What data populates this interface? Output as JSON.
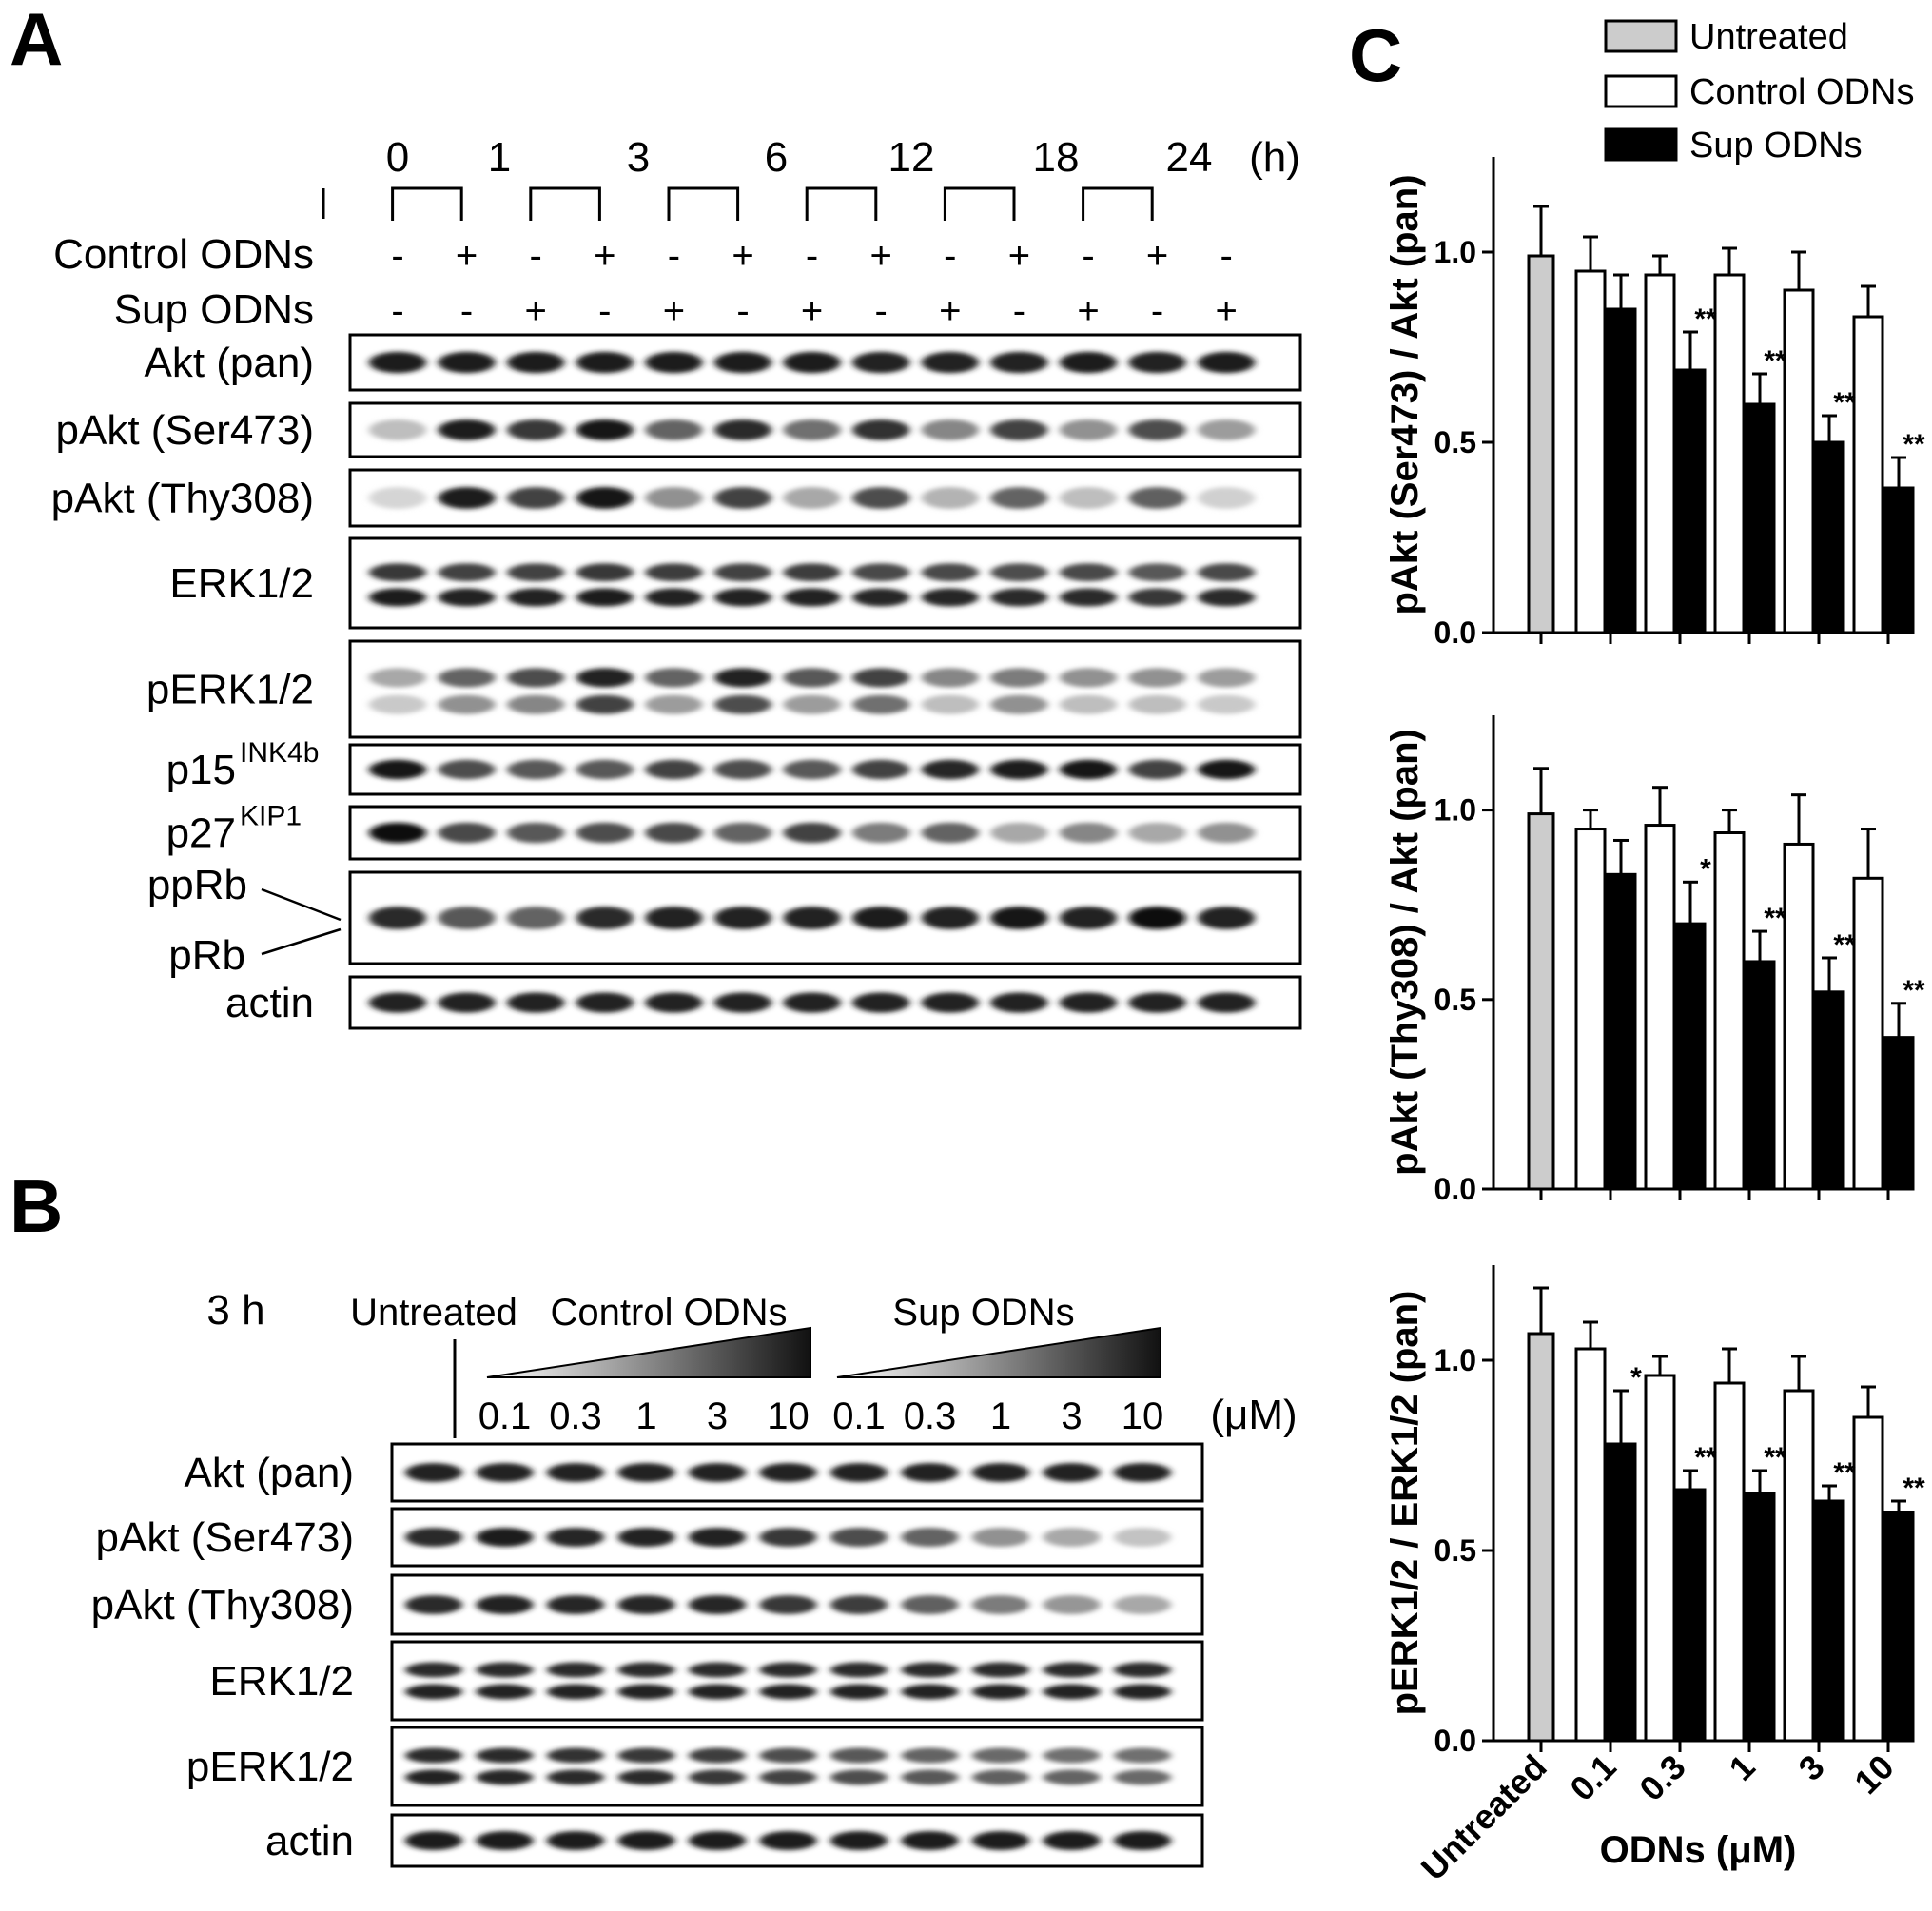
{
  "panelA": {
    "letter": "A",
    "times": [
      "0",
      "1",
      "3",
      "6",
      "12",
      "18",
      "24"
    ],
    "time_unit": "(h)",
    "treatments": [
      {
        "label": "Control ODNs",
        "signs": [
          "-",
          "+",
          "-",
          "+",
          "-",
          "+",
          "-",
          "+",
          "-",
          "+",
          "-",
          "+",
          "-"
        ]
      },
      {
        "label": "Sup ODNs",
        "signs": [
          "-",
          "-",
          "+",
          "-",
          "+",
          "-",
          "+",
          "-",
          "+",
          "-",
          "+",
          "-",
          "+"
        ]
      }
    ],
    "blots": [
      {
        "label": "Akt (pan)",
        "sup": "",
        "rows": 1,
        "levels": [
          [
            0.92,
            0.92,
            0.92,
            0.92,
            0.92,
            0.92,
            0.92,
            0.9,
            0.9,
            0.9,
            0.92,
            0.9,
            0.92
          ]
        ]
      },
      {
        "label": "pAkt (Ser473)",
        "sup": "",
        "rows": 1,
        "levels": [
          [
            0.2,
            0.92,
            0.8,
            0.95,
            0.6,
            0.85,
            0.55,
            0.82,
            0.45,
            0.75,
            0.4,
            0.7,
            0.35
          ]
        ]
      },
      {
        "label": "pAkt (Thy308)",
        "sup": "",
        "rows": 1,
        "levels": [
          [
            0.1,
            0.92,
            0.75,
            0.95,
            0.4,
            0.75,
            0.3,
            0.7,
            0.25,
            0.6,
            0.2,
            0.62,
            0.12
          ]
        ]
      },
      {
        "label": "ERK1/2",
        "sup": "",
        "rows": 2,
        "levels": [
          [
            0.8,
            0.75,
            0.75,
            0.8,
            0.78,
            0.75,
            0.78,
            0.72,
            0.72,
            0.7,
            0.72,
            0.65,
            0.72
          ],
          [
            0.92,
            0.9,
            0.9,
            0.92,
            0.9,
            0.9,
            0.9,
            0.88,
            0.88,
            0.85,
            0.85,
            0.8,
            0.85
          ]
        ]
      },
      {
        "label": "pERK1/2",
        "sup": "",
        "rows": 2,
        "levels": [
          [
            0.3,
            0.6,
            0.7,
            0.9,
            0.6,
            0.9,
            0.65,
            0.75,
            0.45,
            0.5,
            0.4,
            0.4,
            0.35
          ],
          [
            0.15,
            0.4,
            0.45,
            0.75,
            0.35,
            0.7,
            0.35,
            0.55,
            0.2,
            0.4,
            0.2,
            0.2,
            0.15
          ]
        ]
      },
      {
        "label": "p15",
        "sup": "INK4b",
        "rows": 1,
        "levels": [
          [
            0.95,
            0.7,
            0.65,
            0.65,
            0.75,
            0.7,
            0.65,
            0.75,
            0.88,
            0.92,
            0.95,
            0.75,
            0.95
          ]
        ]
      },
      {
        "label": "p27",
        "sup": "KIP1",
        "rows": 1,
        "levels": [
          [
            0.98,
            0.72,
            0.65,
            0.7,
            0.72,
            0.6,
            0.75,
            0.5,
            0.6,
            0.3,
            0.45,
            0.3,
            0.4
          ]
        ]
      },
      {
        "label": "ppRb",
        "label2": "pRb",
        "sup": "",
        "rows": 1,
        "levels": [
          [
            0.85,
            0.65,
            0.6,
            0.85,
            0.9,
            0.9,
            0.9,
            0.92,
            0.9,
            0.95,
            0.9,
            1.0,
            0.9
          ]
        ]
      },
      {
        "label": "actin",
        "sup": "",
        "rows": 1,
        "levels": [
          [
            0.9,
            0.9,
            0.9,
            0.9,
            0.9,
            0.9,
            0.9,
            0.9,
            0.9,
            0.9,
            0.9,
            0.9,
            0.9
          ]
        ]
      }
    ]
  },
  "panelB": {
    "letter": "B",
    "time_label": "3 h",
    "group_untreated": "Untreated",
    "group_control": "Control ODNs",
    "group_sup": "Sup ODNs",
    "concentrations": [
      "0.1",
      "0.3",
      "1",
      "3",
      "10",
      "0.1",
      "0.3",
      "1",
      "3",
      "10"
    ],
    "conc_unit": "(μM)",
    "blots": [
      {
        "label": "Akt (pan)",
        "rows": 1,
        "levels": [
          [
            0.9,
            0.9,
            0.9,
            0.9,
            0.9,
            0.9,
            0.9,
            0.9,
            0.9,
            0.9,
            0.9
          ]
        ]
      },
      {
        "label": "pAkt (Ser473)",
        "rows": 1,
        "levels": [
          [
            0.85,
            0.92,
            0.88,
            0.9,
            0.9,
            0.8,
            0.7,
            0.6,
            0.4,
            0.3,
            0.18
          ]
        ]
      },
      {
        "label": "pAkt (Thy308)",
        "rows": 1,
        "levels": [
          [
            0.85,
            0.9,
            0.88,
            0.88,
            0.88,
            0.8,
            0.78,
            0.62,
            0.5,
            0.38,
            0.3
          ]
        ]
      },
      {
        "label": "ERK1/2",
        "rows": 2,
        "levels": [
          [
            0.85,
            0.85,
            0.85,
            0.85,
            0.85,
            0.85,
            0.85,
            0.85,
            0.85,
            0.85,
            0.85
          ],
          [
            0.9,
            0.9,
            0.9,
            0.9,
            0.9,
            0.9,
            0.9,
            0.9,
            0.9,
            0.9,
            0.9
          ]
        ]
      },
      {
        "label": "pERK1/2",
        "rows": 2,
        "levels": [
          [
            0.85,
            0.85,
            0.82,
            0.8,
            0.78,
            0.7,
            0.65,
            0.6,
            0.58,
            0.55,
            0.55
          ],
          [
            0.9,
            0.88,
            0.85,
            0.85,
            0.8,
            0.75,
            0.7,
            0.65,
            0.62,
            0.6,
            0.58
          ]
        ]
      },
      {
        "label": "actin",
        "rows": 1,
        "levels": [
          [
            0.92,
            0.92,
            0.92,
            0.92,
            0.92,
            0.92,
            0.92,
            0.92,
            0.92,
            0.92,
            0.92
          ]
        ]
      }
    ]
  },
  "chart_data": [
    {
      "type": "bar",
      "panel_letter": "C",
      "ylabel": "pAkt (Ser473) / Akt (pan)",
      "ylim": [
        0,
        1.25
      ],
      "yticks": [
        "0.0",
        "0.5",
        "1.0"
      ],
      "categories": [
        "Untreated",
        "0.1",
        "0.3",
        "1",
        "3",
        "10"
      ],
      "series": [
        {
          "name": "Untreated",
          "color": "#cccccc",
          "values": [
            0.99,
            null,
            null,
            null,
            null,
            null
          ],
          "errors": [
            0.13,
            null,
            null,
            null,
            null,
            null
          ],
          "sig": [
            "",
            "",
            "",
            "",
            "",
            ""
          ]
        },
        {
          "name": "Control ODNs",
          "color": "#ffffff",
          "values": [
            null,
            0.95,
            0.94,
            0.94,
            0.9,
            0.83
          ],
          "errors": [
            null,
            0.09,
            0.05,
            0.07,
            0.1,
            0.08
          ],
          "sig": [
            "",
            "",
            "",
            "",
            "",
            ""
          ]
        },
        {
          "name": "Sup ODNs",
          "color": "#000000",
          "values": [
            null,
            0.85,
            0.69,
            0.6,
            0.5,
            0.38
          ],
          "errors": [
            null,
            0.09,
            0.1,
            0.08,
            0.07,
            0.08
          ],
          "sig": [
            "",
            "",
            "**",
            "**",
            "**",
            "**"
          ]
        }
      ]
    },
    {
      "type": "bar",
      "ylabel": "pAkt (Thy308) / Akt (pan)",
      "ylim": [
        0,
        1.25
      ],
      "yticks": [
        "0.0",
        "0.5",
        "1.0"
      ],
      "categories": [
        "Untreated",
        "0.1",
        "0.3",
        "1",
        "3",
        "10"
      ],
      "series": [
        {
          "name": "Untreated",
          "color": "#cccccc",
          "values": [
            0.99,
            null,
            null,
            null,
            null,
            null
          ],
          "errors": [
            0.12,
            null,
            null,
            null,
            null,
            null
          ],
          "sig": [
            "",
            "",
            "",
            "",
            "",
            ""
          ]
        },
        {
          "name": "Control ODNs",
          "color": "#ffffff",
          "values": [
            null,
            0.95,
            0.96,
            0.94,
            0.91,
            0.82
          ],
          "errors": [
            null,
            0.05,
            0.1,
            0.06,
            0.13,
            0.13
          ],
          "sig": [
            "",
            "",
            "",
            "",
            "",
            ""
          ]
        },
        {
          "name": "Sup ODNs",
          "color": "#000000",
          "values": [
            null,
            0.83,
            0.7,
            0.6,
            0.52,
            0.4
          ],
          "errors": [
            null,
            0.09,
            0.11,
            0.08,
            0.09,
            0.09
          ],
          "sig": [
            "",
            "",
            "*",
            "**",
            "**",
            "**"
          ]
        }
      ]
    },
    {
      "type": "bar",
      "ylabel": "pERK1/2 / ERK1/2 (pan)",
      "xlabel": "ODNs (μM)",
      "ylim": [
        0,
        1.25
      ],
      "yticks": [
        "0.0",
        "0.5",
        "1.0"
      ],
      "categories": [
        "Untreated",
        "0.1",
        "0.3",
        "1",
        "3",
        "10"
      ],
      "series": [
        {
          "name": "Untreated",
          "color": "#cccccc",
          "values": [
            1.07,
            null,
            null,
            null,
            null,
            null
          ],
          "errors": [
            0.12,
            null,
            null,
            null,
            null,
            null
          ],
          "sig": [
            "",
            "",
            "",
            "",
            "",
            ""
          ]
        },
        {
          "name": "Control ODNs",
          "color": "#ffffff",
          "values": [
            null,
            1.03,
            0.96,
            0.94,
            0.92,
            0.85
          ],
          "errors": [
            null,
            0.07,
            0.05,
            0.09,
            0.09,
            0.08
          ],
          "sig": [
            "",
            "",
            "",
            "",
            "",
            ""
          ]
        },
        {
          "name": "Sup ODNs",
          "color": "#000000",
          "values": [
            null,
            0.78,
            0.66,
            0.65,
            0.63,
            0.6
          ],
          "errors": [
            null,
            0.14,
            0.05,
            0.06,
            0.04,
            0.03
          ],
          "sig": [
            "",
            "*",
            "**",
            "**",
            "**",
            "**"
          ]
        }
      ]
    }
  ],
  "legend": {
    "items": [
      {
        "label": "Untreated",
        "color": "#cccccc"
      },
      {
        "label": "Control ODNs",
        "color": "#ffffff"
      },
      {
        "label": "Sup ODNs",
        "color": "#000000"
      }
    ]
  }
}
